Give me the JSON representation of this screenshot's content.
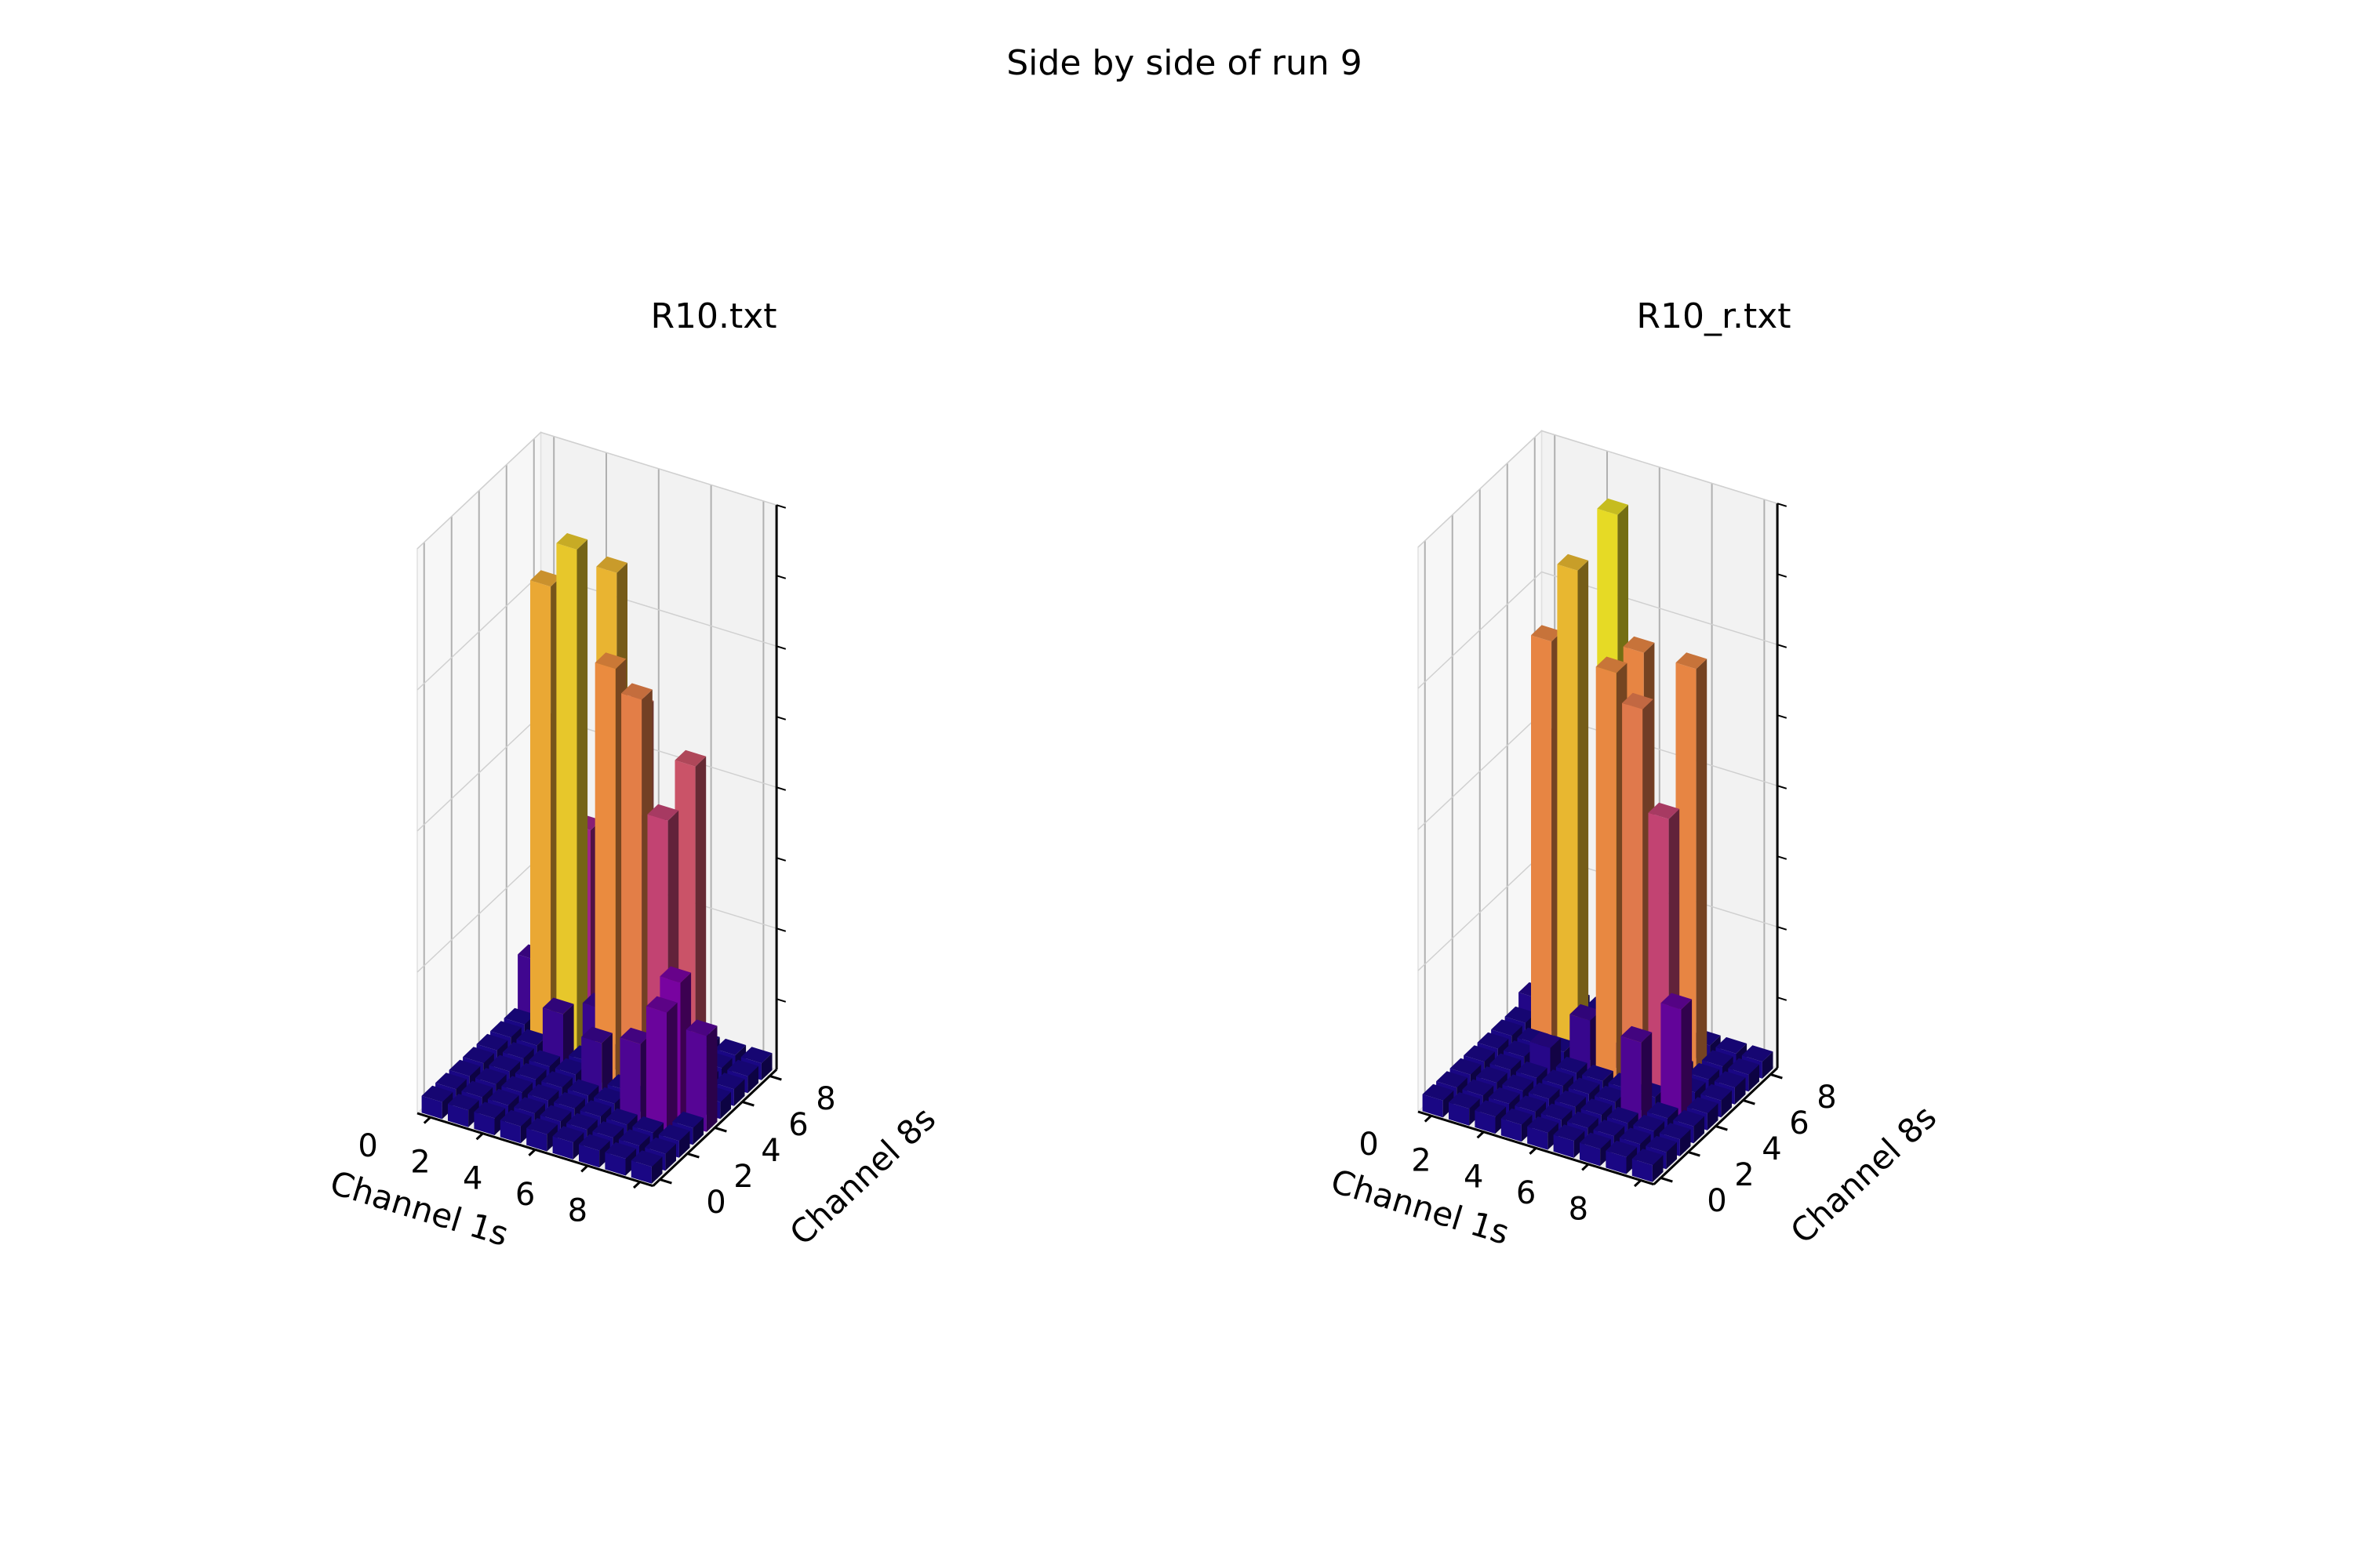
{
  "figure": {
    "suptitle": "Side by side of run 9"
  },
  "chart_data": [
    {
      "type": "bar3d",
      "title": "R10.txt",
      "xlabel": "Channel 1s",
      "ylabel": "Channel 8s",
      "xticks": [
        "0",
        "2",
        "4",
        "6",
        "8"
      ],
      "yticks": [
        "0",
        "2",
        "4",
        "6",
        "8"
      ],
      "zlim": [
        0,
        1
      ],
      "colormap": "plasma",
      "grid": true,
      "bars": [
        {
          "x": 1,
          "y": 6,
          "h": 0.82
        },
        {
          "x": 1,
          "y": 7,
          "h": 0.55
        },
        {
          "x": 2,
          "y": 6,
          "h": 0.9
        },
        {
          "x": 2,
          "y": 7,
          "h": 0.38
        },
        {
          "x": 3,
          "y": 7,
          "h": 0.85
        },
        {
          "x": 3,
          "y": 6,
          "h": 0.1
        },
        {
          "x": 4,
          "y": 5,
          "h": 0.74
        },
        {
          "x": 4,
          "y": 7,
          "h": 0.62
        },
        {
          "x": 5,
          "y": 5,
          "h": 0.7
        },
        {
          "x": 5,
          "y": 6,
          "h": 0.45
        },
        {
          "x": 6,
          "y": 5,
          "h": 0.5
        },
        {
          "x": 6,
          "y": 7,
          "h": 0.55
        },
        {
          "x": 6,
          "y": 3,
          "h": 0.15
        },
        {
          "x": 7,
          "y": 3,
          "h": 0.22
        },
        {
          "x": 7,
          "y": 4,
          "h": 0.25
        },
        {
          "x": 8,
          "y": 4,
          "h": 0.17
        },
        {
          "x": 0,
          "y": 7,
          "h": 0.12
        },
        {
          "x": 2,
          "y": 5,
          "h": 0.1
        },
        {
          "x": 4,
          "y": 4,
          "h": 0.1
        }
      ]
    },
    {
      "type": "bar3d",
      "title": "R10_r.txt",
      "xlabel": "Channel 1s",
      "ylabel": "Channel 8s",
      "xticks": [
        "0",
        "2",
        "4",
        "6",
        "8"
      ],
      "yticks": [
        "0",
        "2",
        "4",
        "6",
        "8"
      ],
      "zlim": [
        0,
        1
      ],
      "colormap": "plasma",
      "grid": true,
      "bars": [
        {
          "x": 1,
          "y": 6,
          "h": 0.72
        },
        {
          "x": 1,
          "y": 7,
          "h": 0.52
        },
        {
          "x": 2,
          "y": 6,
          "h": 0.86
        },
        {
          "x": 3,
          "y": 7,
          "h": 0.95
        },
        {
          "x": 3,
          "y": 5,
          "h": 0.1
        },
        {
          "x": 4,
          "y": 5,
          "h": 0.73
        },
        {
          "x": 4,
          "y": 7,
          "h": 0.72
        },
        {
          "x": 5,
          "y": 5,
          "h": 0.68
        },
        {
          "x": 6,
          "y": 5,
          "h": 0.5
        },
        {
          "x": 6,
          "y": 7,
          "h": 0.72
        },
        {
          "x": 6,
          "y": 3,
          "h": 0.15
        },
        {
          "x": 7,
          "y": 4,
          "h": 0.2
        },
        {
          "x": 0,
          "y": 7,
          "h": 0.05
        },
        {
          "x": 2,
          "y": 4,
          "h": 0.06
        }
      ]
    }
  ]
}
